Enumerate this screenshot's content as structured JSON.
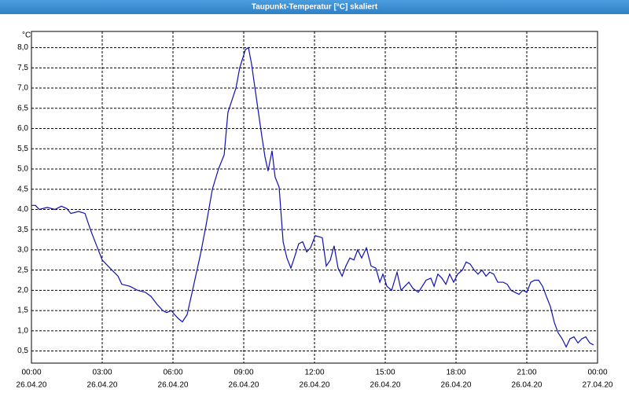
{
  "window_title": "Taupunkt-Temperatur [°C] skaliert",
  "chart_data": {
    "type": "line",
    "y_unit": "°C",
    "x": [
      0,
      0.17,
      0.33,
      0.67,
      1,
      1.27,
      1.5,
      1.67,
      2,
      2.27,
      2.5,
      3,
      3.33,
      3.67,
      3.83,
      4.17,
      4.5,
      4.83,
      5.07,
      5.33,
      5.57,
      5.73,
      5.93,
      6.07,
      6.23,
      6.4,
      6.6,
      6.83,
      7.17,
      7.4,
      7.67,
      7.93,
      8.17,
      8.33,
      8.67,
      8.83,
      9.07,
      9.2,
      9.33,
      9.5,
      9.77,
      9.9,
      10.03,
      10.2,
      10.33,
      10.5,
      10.67,
      10.83,
      11,
      11.17,
      11.33,
      11.5,
      11.67,
      11.83,
      12.03,
      12.33,
      12.5,
      12.67,
      12.83,
      13,
      13.17,
      13.33,
      13.5,
      13.67,
      13.83,
      14,
      14.2,
      14.4,
      14.6,
      14.77,
      14.9,
      15.07,
      15.27,
      15.5,
      15.67,
      15.83,
      16,
      16.17,
      16.4,
      16.57,
      16.73,
      16.93,
      17.07,
      17.23,
      17.4,
      17.57,
      17.73,
      17.9,
      18.07,
      18.27,
      18.43,
      18.6,
      18.77,
      18.93,
      19.1,
      19.27,
      19.43,
      19.6,
      19.77,
      20,
      20.17,
      20.33,
      20.5,
      20.67,
      20.83,
      21,
      21.17,
      21.33,
      21.5,
      21.67,
      21.83,
      22,
      22.17,
      22.33,
      22.5,
      22.67,
      22.83,
      23,
      23.17,
      23.33,
      23.5,
      23.67,
      23.83
    ],
    "series": [
      {
        "color": "#1010b0",
        "values": [
          4.1,
          4.1,
          4.0,
          4.05,
          4.0,
          4.08,
          4.02,
          3.9,
          3.95,
          3.9,
          3.5,
          2.75,
          2.55,
          2.35,
          2.15,
          2.1,
          2.0,
          1.95,
          1.85,
          1.65,
          1.5,
          1.45,
          1.5,
          1.4,
          1.3,
          1.22,
          1.4,
          2.0,
          2.9,
          3.6,
          4.5,
          5.0,
          5.35,
          6.4,
          7.0,
          7.5,
          7.95,
          8.0,
          7.6,
          6.9,
          5.8,
          5.3,
          4.95,
          5.45,
          4.8,
          4.55,
          3.2,
          2.8,
          2.55,
          2.85,
          3.15,
          3.2,
          2.95,
          3.05,
          3.35,
          3.3,
          2.6,
          2.75,
          3.1,
          2.55,
          2.35,
          2.6,
          2.8,
          2.75,
          3.0,
          2.8,
          3.05,
          2.6,
          2.55,
          2.2,
          2.4,
          2.1,
          2.0,
          2.45,
          2.0,
          2.1,
          2.2,
          2.05,
          1.95,
          2.1,
          2.25,
          2.3,
          2.1,
          2.4,
          2.3,
          2.15,
          2.4,
          2.2,
          2.4,
          2.5,
          2.7,
          2.65,
          2.5,
          2.4,
          2.5,
          2.35,
          2.45,
          2.4,
          2.2,
          2.2,
          2.15,
          2.0,
          1.95,
          1.9,
          2.0,
          1.95,
          2.2,
          2.25,
          2.25,
          2.1,
          1.85,
          1.6,
          1.2,
          0.95,
          0.8,
          0.6,
          0.8,
          0.85,
          0.7,
          0.8,
          0.85,
          0.7,
          0.65
        ]
      }
    ],
    "xlim": [
      0,
      24
    ],
    "xticks": [
      {
        "value": 0,
        "label": "00:00"
      },
      {
        "value": 3,
        "label": "03:00"
      },
      {
        "value": 6,
        "label": "06:00"
      },
      {
        "value": 9,
        "label": "09:00"
      },
      {
        "value": 12,
        "label": "12:00"
      },
      {
        "value": 15,
        "label": "15:00"
      },
      {
        "value": 18,
        "label": "18:00"
      },
      {
        "value": 21,
        "label": "21:00"
      },
      {
        "value": 24,
        "label": "00:00"
      }
    ],
    "xtick_dates": [
      "26.04.20",
      "26.04.20",
      "26.04.20",
      "26.04.20",
      "26.04.20",
      "26.04.20",
      "26.04.20",
      "26.04.20",
      "27.04.20"
    ],
    "ylim": [
      0.2,
      8.4
    ],
    "yticks": [
      {
        "value": 0.5,
        "label": "0,5"
      },
      {
        "value": 1,
        "label": "1,0"
      },
      {
        "value": 1.5,
        "label": "1,5"
      },
      {
        "value": 2,
        "label": "2,0"
      },
      {
        "value": 2.5,
        "label": "2,5"
      },
      {
        "value": 3,
        "label": "3,0"
      },
      {
        "value": 3.5,
        "label": "3,5"
      },
      {
        "value": 4,
        "label": "4,0"
      },
      {
        "value": 4.5,
        "label": "4,5"
      },
      {
        "value": 5,
        "label": "5,0"
      },
      {
        "value": 5.5,
        "label": "5,5"
      },
      {
        "value": 6,
        "label": "6,0"
      },
      {
        "value": 6.5,
        "label": "6,5"
      },
      {
        "value": 7,
        "label": "7,0"
      },
      {
        "value": 7.5,
        "label": "7,5"
      },
      {
        "value": 8,
        "label": "8,0"
      }
    ],
    "grid": true
  }
}
